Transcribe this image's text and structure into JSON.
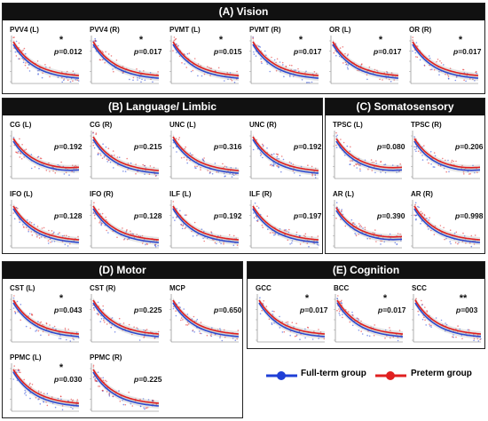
{
  "sections": [
    {
      "key": "vision",
      "title": "(A) Vision"
    },
    {
      "key": "language",
      "title": "(B) Language/ Limbic"
    },
    {
      "key": "somato",
      "title": "(C) Somatosensory"
    },
    {
      "key": "motor",
      "title": "(D) Motor"
    },
    {
      "key": "cognition",
      "title": "(E) Cognition"
    }
  ],
  "legend": {
    "full_term": {
      "label": "Full-term group",
      "color": "#1f3fd6"
    },
    "preterm": {
      "label": "Preterm group",
      "color": "#e02020"
    }
  },
  "chart_data": [
    {
      "type": "scatter",
      "section": "vision",
      "title": "PVV4 (L)",
      "stars": "*",
      "p_label": "p",
      "p_value": "=0.012",
      "shape": "decay"
    },
    {
      "type": "scatter",
      "section": "vision",
      "title": "PVV4 (R)",
      "stars": "*",
      "p_label": "p",
      "p_value": "=0.017",
      "shape": "decay"
    },
    {
      "type": "scatter",
      "section": "vision",
      "title": "PVMT (L)",
      "stars": "*",
      "p_label": "p",
      "p_value": "=0.015",
      "shape": "decay"
    },
    {
      "type": "scatter",
      "section": "vision",
      "title": "PVMT (R)",
      "stars": "*",
      "p_label": "p",
      "p_value": "=0.017",
      "shape": "decay"
    },
    {
      "type": "scatter",
      "section": "vision",
      "title": "OR (L)",
      "stars": "*",
      "p_label": "p",
      "p_value": "=0.017",
      "shape": "decay"
    },
    {
      "type": "scatter",
      "section": "vision",
      "title": "OR (R)",
      "stars": "*",
      "p_label": "p",
      "p_value": "=0.017",
      "shape": "decay"
    },
    {
      "type": "scatter",
      "section": "language",
      "title": "CG (L)",
      "stars": "",
      "p_label": "p",
      "p_value": "=0.192",
      "shape": "u"
    },
    {
      "type": "scatter",
      "section": "language",
      "title": "CG (R)",
      "stars": "",
      "p_label": "p",
      "p_value": "=0.215",
      "shape": "decay"
    },
    {
      "type": "scatter",
      "section": "language",
      "title": "UNC (L)",
      "stars": "",
      "p_label": "p",
      "p_value": "=0.316",
      "shape": "decay"
    },
    {
      "type": "scatter",
      "section": "language",
      "title": "UNC (R)",
      "stars": "",
      "p_label": "p",
      "p_value": "=0.192",
      "shape": "decay"
    },
    {
      "type": "scatter",
      "section": "language",
      "title": "IFO (L)",
      "stars": "",
      "p_label": "p",
      "p_value": "=0.128",
      "shape": "decay"
    },
    {
      "type": "scatter",
      "section": "language",
      "title": "IFO (R)",
      "stars": "",
      "p_label": "p",
      "p_value": "=0.128",
      "shape": "decay"
    },
    {
      "type": "scatter",
      "section": "language",
      "title": "ILF (L)",
      "stars": "",
      "p_label": "p",
      "p_value": "=0.192",
      "shape": "decay"
    },
    {
      "type": "scatter",
      "section": "language",
      "title": "ILF (R)",
      "stars": "",
      "p_label": "p",
      "p_value": "=0.197",
      "shape": "decay"
    },
    {
      "type": "scatter",
      "section": "somato",
      "title": "TPSC (L)",
      "stars": "",
      "p_label": "p",
      "p_value": "=0.080",
      "shape": "u"
    },
    {
      "type": "scatter",
      "section": "somato",
      "title": "TPSC (R)",
      "stars": "",
      "p_label": "p",
      "p_value": "=0.206",
      "shape": "u"
    },
    {
      "type": "scatter",
      "section": "somato",
      "title": "AR (L)",
      "stars": "",
      "p_label": "p",
      "p_value": "=0.390",
      "shape": "u"
    },
    {
      "type": "scatter",
      "section": "somato",
      "title": "AR (R)",
      "stars": "",
      "p_label": "p",
      "p_value": "=0.998",
      "shape": "decay"
    },
    {
      "type": "scatter",
      "section": "motor",
      "title": "CST (L)",
      "stars": "*",
      "p_label": "p",
      "p_value": "=0.043",
      "shape": "decay"
    },
    {
      "type": "scatter",
      "section": "motor",
      "title": "CST (R)",
      "stars": "",
      "p_label": "p",
      "p_value": "=0.225",
      "shape": "decay"
    },
    {
      "type": "scatter",
      "section": "motor",
      "title": "MCP",
      "stars": "",
      "p_label": "p",
      "p_value": "=0.650",
      "shape": "decay"
    },
    {
      "type": "scatter",
      "section": "motor",
      "title": "PPMC (L)",
      "stars": "*",
      "p_label": "p",
      "p_value": "=0.030",
      "shape": "decay"
    },
    {
      "type": "scatter",
      "section": "motor",
      "title": "PPMC (R)",
      "stars": "",
      "p_label": "p",
      "p_value": "=0.225",
      "shape": "decay"
    },
    {
      "type": "scatter",
      "section": "cognition",
      "title": "GCC",
      "stars": "*",
      "p_label": "p",
      "p_value": "=0.017",
      "shape": "decay"
    },
    {
      "type": "scatter",
      "section": "cognition",
      "title": "BCC",
      "stars": "*",
      "p_label": "p",
      "p_value": "=0.017",
      "shape": "decay"
    },
    {
      "type": "scatter",
      "section": "cognition",
      "title": "SCC",
      "stars": "**",
      "p_label": "p",
      "p_value": "=003",
      "shape": "decay"
    }
  ]
}
